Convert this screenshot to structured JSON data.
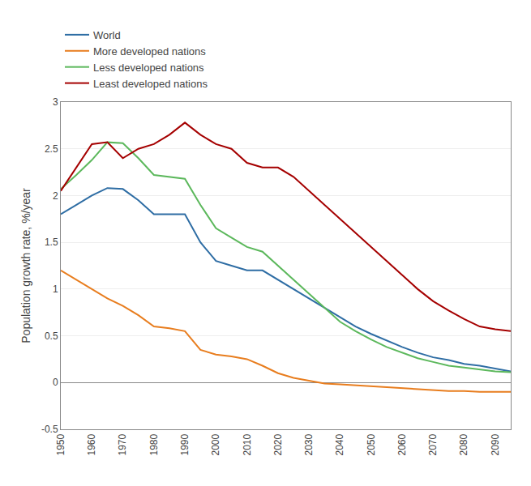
{
  "chart_data": {
    "type": "line",
    "ylabel": "Population growth rate, %/year",
    "x": [
      1950,
      1955,
      1960,
      1965,
      1970,
      1975,
      1980,
      1985,
      1990,
      1995,
      2000,
      2005,
      2010,
      2015,
      2020,
      2025,
      2030,
      2035,
      2040,
      2045,
      2050,
      2055,
      2060,
      2065,
      2070,
      2075,
      2080,
      2085,
      2090,
      2095
    ],
    "series": [
      {
        "name": "World",
        "color": "#2e6da4",
        "values": [
          1.8,
          1.9,
          2.0,
          2.08,
          2.07,
          1.95,
          1.8,
          1.8,
          1.8,
          1.5,
          1.3,
          1.25,
          1.2,
          1.2,
          1.1,
          1.0,
          0.9,
          0.8,
          0.7,
          0.6,
          0.52,
          0.45,
          0.38,
          0.32,
          0.27,
          0.24,
          0.2,
          0.18,
          0.15,
          0.12
        ]
      },
      {
        "name": "More developed nations",
        "color": "#e87d1e",
        "values": [
          1.2,
          1.1,
          1.0,
          0.9,
          0.82,
          0.72,
          0.6,
          0.58,
          0.55,
          0.35,
          0.3,
          0.28,
          0.25,
          0.18,
          0.1,
          0.05,
          0.02,
          -0.01,
          -0.02,
          -0.03,
          -0.04,
          -0.05,
          -0.06,
          -0.07,
          -0.08,
          -0.09,
          -0.09,
          -0.1,
          -0.1,
          -0.1
        ]
      },
      {
        "name": "Less developed nations",
        "color": "#5cb85c",
        "values": [
          2.07,
          2.22,
          2.38,
          2.57,
          2.56,
          2.4,
          2.22,
          2.2,
          2.18,
          1.9,
          1.65,
          1.55,
          1.45,
          1.4,
          1.25,
          1.1,
          0.95,
          0.8,
          0.65,
          0.55,
          0.46,
          0.38,
          0.32,
          0.26,
          0.22,
          0.18,
          0.16,
          0.14,
          0.12,
          0.11
        ]
      },
      {
        "name": "Least developed nations",
        "color": "#a50000",
        "values": [
          2.05,
          2.3,
          2.55,
          2.57,
          2.4,
          2.5,
          2.55,
          2.65,
          2.78,
          2.65,
          2.55,
          2.5,
          2.35,
          2.3,
          2.3,
          2.2,
          2.05,
          1.9,
          1.75,
          1.6,
          1.45,
          1.3,
          1.15,
          1.0,
          0.87,
          0.77,
          0.68,
          0.6,
          0.57,
          0.55
        ]
      }
    ],
    "xlim": [
      1950,
      2095
    ],
    "xticks": [
      1950,
      1960,
      1970,
      1980,
      1990,
      2000,
      2010,
      2020,
      2030,
      2040,
      2050,
      2060,
      2070,
      2080,
      2090
    ],
    "ylim": [
      -0.5,
      3.0
    ],
    "yticks": [
      -0.5,
      0.0,
      0.5,
      1.0,
      1.5,
      2.0,
      2.5,
      3.0
    ],
    "grid": "y",
    "legend": "top"
  }
}
